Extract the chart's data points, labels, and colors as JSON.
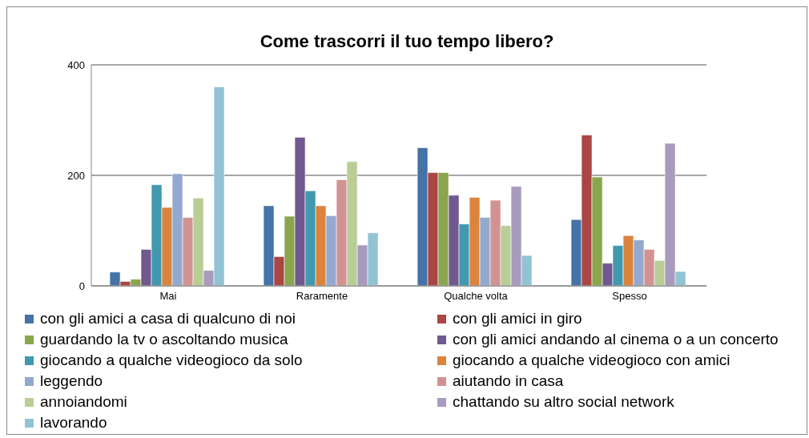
{
  "chart_data": {
    "type": "bar",
    "title": "Come trascorri il tuo tempo libero?",
    "categories": [
      "Mai",
      "Raramente",
      "Qualche volta",
      "Spesso"
    ],
    "series": [
      {
        "name": "con gli amici a casa di qualcuno di noi",
        "color": "#4572a7",
        "values": [
          25,
          145,
          250,
          120
        ]
      },
      {
        "name": "con gli amici in giro",
        "color": "#aa4643",
        "values": [
          8,
          53,
          205,
          273
        ]
      },
      {
        "name": "guardando la tv o ascoltando musica",
        "color": "#89a54e",
        "values": [
          12,
          126,
          205,
          197
        ]
      },
      {
        "name": "con gli amici andando al cinema o a un concerto",
        "color": "#71588f",
        "values": [
          66,
          269,
          164,
          41
        ]
      },
      {
        "name": "giocando a qualche videogioco da solo",
        "color": "#4198af",
        "values": [
          183,
          172,
          112,
          73
        ]
      },
      {
        "name": "giocando a qualche videogioco con amici",
        "color": "#db843d",
        "values": [
          142,
          145,
          160,
          91
        ]
      },
      {
        "name": "leggendo",
        "color": "#93a9cf",
        "values": [
          203,
          127,
          124,
          83
        ]
      },
      {
        "name": "aiutando in casa",
        "color": "#d19392",
        "values": [
          124,
          192,
          155,
          66
        ]
      },
      {
        "name": "annoiandomi",
        "color": "#b9cd96",
        "values": [
          159,
          225,
          109,
          46
        ]
      },
      {
        "name": "chattando su altro social network",
        "color": "#a99bbd",
        "values": [
          28,
          74,
          180,
          258
        ]
      },
      {
        "name": "lavorando",
        "color": "#92c3d4",
        "values": [
          360,
          96,
          55,
          26
        ]
      }
    ],
    "ylim": [
      0,
      400
    ],
    "yticks": [
      0,
      200,
      400
    ],
    "grid": "y",
    "legend": "bottom"
  }
}
